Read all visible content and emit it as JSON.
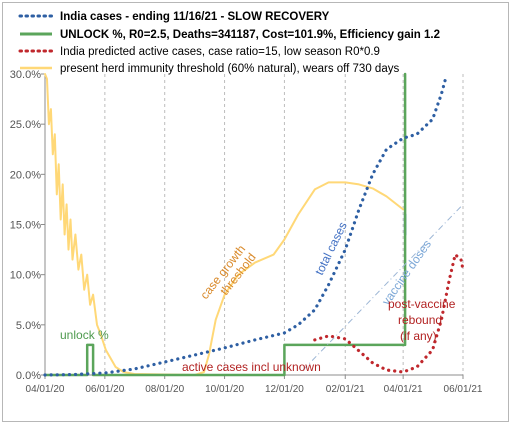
{
  "chart_data": {
    "type": "line",
    "title": "",
    "xlabel": "",
    "ylabel": "",
    "x_tick_labels": [
      "04/01/20",
      "06/01/20",
      "08/01/20",
      "10/01/20",
      "12/01/20",
      "02/01/21",
      "04/01/21",
      "06/01/21"
    ],
    "y_tick_labels": [
      "0.0%",
      "5.0%",
      "10.0%",
      "15.0%",
      "20.0%",
      "25.0%",
      "30.0%"
    ],
    "xlim": [
      "2020-04-01",
      "2021-06-01"
    ],
    "ylim": [
      0,
      30
    ],
    "grid": "vertical dashed lines at date ticks",
    "legend_placement": "top-left, inside plot",
    "legend": [
      {
        "label": "India cases - ending 11/16/21 - SLOW RECOVERY",
        "color": "#2E5FA3",
        "style": "dotted"
      },
      {
        "label": "UNLOCK %, R0=2.5,  Deaths=341187, Cost=101.9%, Efficiency gain 1.2",
        "color": "#5BA55B",
        "style": "solid"
      },
      {
        "label": "India predicted active cases, case ratio=15, low season R0*0.9",
        "color": "#C0282D",
        "style": "dotted"
      },
      {
        "label": "present herd immunity threshold (60% natural), wears off 730 days",
        "color": "#FFD877",
        "style": "solid"
      }
    ],
    "annotations": [
      {
        "text": "unlock %",
        "color": "#4E9A4E"
      },
      {
        "text": "case growth",
        "color": "#D98A2B"
      },
      {
        "text": "threshold",
        "color": "#D98A2B"
      },
      {
        "text": "total cases",
        "color": "#4472C4"
      },
      {
        "text": "vaccine doses",
        "color": "#7AA6D6"
      },
      {
        "text": "active cases incl unknown",
        "color": "#B22222"
      },
      {
        "text": "post-vaccine",
        "color": "#B22222"
      },
      {
        "text": "rebound",
        "color": "#B22222"
      },
      {
        "text": "(if any)",
        "color": "#B22222"
      }
    ],
    "series": [
      {
        "name": "India cases - ending 11/16/21 - SLOW RECOVERY",
        "color": "#2E5FA3",
        "style": "dotted",
        "points": [
          [
            "2020-04-01",
            0
          ],
          [
            "2020-05-01",
            0.05
          ],
          [
            "2020-06-01",
            0.2
          ],
          [
            "2020-07-01",
            0.6
          ],
          [
            "2020-08-01",
            1.3
          ],
          [
            "2020-09-01",
            2.0
          ],
          [
            "2020-10-01",
            2.7
          ],
          [
            "2020-11-01",
            3.5
          ],
          [
            "2020-12-01",
            4.2
          ],
          [
            "2020-12-15",
            5.0
          ],
          [
            "2021-01-01",
            6.5
          ],
          [
            "2021-01-15",
            9.0
          ],
          [
            "2021-02-01",
            12.5
          ],
          [
            "2021-02-15",
            16.5
          ],
          [
            "2021-03-01",
            20.0
          ],
          [
            "2021-03-15",
            22.5
          ],
          [
            "2021-04-01",
            23.6
          ],
          [
            "2021-04-15",
            24.0
          ],
          [
            "2021-05-01",
            25.5
          ],
          [
            "2021-05-10",
            28.0
          ],
          [
            "2021-05-15",
            29.8
          ]
        ]
      },
      {
        "name": "UNLOCK %, R0=2.5,  Deaths=341187, Cost=101.9%, Efficiency gain 1.2",
        "color": "#5BA55B",
        "style": "solid",
        "points": [
          [
            "2020-04-01",
            0
          ],
          [
            "2020-05-14",
            0
          ],
          [
            "2020-05-14",
            3.0
          ],
          [
            "2020-05-20",
            3.0
          ],
          [
            "2020-05-20",
            0
          ],
          [
            "2020-12-01",
            0
          ],
          [
            "2020-12-01",
            3.0
          ],
          [
            "2021-04-03",
            3.0
          ],
          [
            "2021-04-03",
            30.0
          ]
        ]
      },
      {
        "name": "vaccine doses",
        "color": "#2E75B6",
        "style": "solid",
        "points": [
          [
            "2021-04-03",
            14.0
          ],
          [
            "2021-04-03",
            16.0
          ]
        ]
      },
      {
        "name": "India predicted active cases, case ratio=15, low season R0*0.9",
        "color": "#C0282D",
        "style": "dotted",
        "points": [
          [
            "2021-01-01",
            3.5
          ],
          [
            "2021-01-15",
            3.9
          ],
          [
            "2021-02-01",
            3.6
          ],
          [
            "2021-02-15",
            2.4
          ],
          [
            "2021-03-01",
            1.2
          ],
          [
            "2021-03-15",
            0.5
          ],
          [
            "2021-04-01",
            0.3
          ],
          [
            "2021-04-15",
            0.8
          ],
          [
            "2021-05-01",
            2.5
          ],
          [
            "2021-05-10",
            5.5
          ],
          [
            "2021-05-18",
            9.5
          ],
          [
            "2021-05-24",
            12.0
          ],
          [
            "2021-05-30",
            11.5
          ],
          [
            "2021-06-01",
            10.5
          ]
        ]
      },
      {
        "name": "present herd immunity threshold (60% natural), wears off 730 days",
        "color": "#FFD877",
        "style": "solid",
        "points": [
          [
            "2020-04-01",
            30.0
          ],
          [
            "2020-04-03",
            29.5
          ],
          [
            "2020-04-05",
            25.0
          ],
          [
            "2020-04-07",
            26.5
          ],
          [
            "2020-04-09",
            22.0
          ],
          [
            "2020-04-11",
            24.0
          ],
          [
            "2020-04-13",
            18.0
          ],
          [
            "2020-04-15",
            21.0
          ],
          [
            "2020-04-17",
            15.5
          ],
          [
            "2020-04-19",
            19.0
          ],
          [
            "2020-04-21",
            14.0
          ],
          [
            "2020-04-23",
            17.0
          ],
          [
            "2020-04-25",
            12.5
          ],
          [
            "2020-04-27",
            15.5
          ],
          [
            "2020-04-29",
            11.5
          ],
          [
            "2020-05-02",
            14.0
          ],
          [
            "2020-05-05",
            10.5
          ],
          [
            "2020-05-08",
            12.0
          ],
          [
            "2020-05-11",
            8.5
          ],
          [
            "2020-05-14",
            10.0
          ],
          [
            "2020-05-17",
            7.0
          ],
          [
            "2020-05-20",
            8.0
          ],
          [
            "2020-05-24",
            5.0
          ],
          [
            "2020-05-28",
            4.0
          ],
          [
            "2020-06-02",
            2.5
          ],
          [
            "2020-06-06",
            1.8
          ],
          [
            "2020-06-12",
            0.8
          ],
          [
            "2020-06-20",
            0.3
          ],
          [
            "2020-07-01",
            0.1
          ],
          [
            "2020-09-01",
            0
          ],
          [
            "2020-09-10",
            0.3
          ],
          [
            "2020-09-15",
            2.0
          ],
          [
            "2020-09-22",
            5.5
          ],
          [
            "2020-10-01",
            8.0
          ],
          [
            "2020-10-15",
            10.0
          ],
          [
            "2020-11-01",
            11.2
          ],
          [
            "2020-11-20",
            12.0
          ],
          [
            "2020-12-01",
            13.5
          ],
          [
            "2020-12-15",
            16.0
          ],
          [
            "2021-01-01",
            18.5
          ],
          [
            "2021-01-15",
            19.2
          ],
          [
            "2021-02-01",
            19.2
          ],
          [
            "2021-02-15",
            19.0
          ],
          [
            "2021-03-01",
            18.6
          ],
          [
            "2021-03-15",
            17.8
          ],
          [
            "2021-04-01",
            16.5
          ]
        ]
      }
    ]
  }
}
